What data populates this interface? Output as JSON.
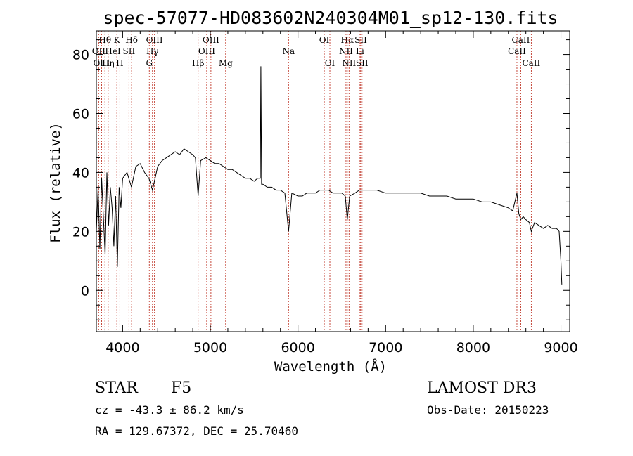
{
  "chart_data": {
    "type": "line",
    "title": "spec-57077-HD083602N240304M01_sp12-130.fits",
    "xlabel": "Wavelength (Å)",
    "ylabel": "Flux (relative)",
    "xlim": [
      3700,
      9100
    ],
    "ylim": [
      -14,
      88
    ],
    "xticks": [
      4000,
      5000,
      6000,
      7000,
      8000,
      9000
    ],
    "xtick_labels": [
      "4000",
      "5000",
      "6000",
      "7000",
      "8000",
      "9000"
    ],
    "yticks": [
      0,
      20,
      40,
      60,
      80
    ],
    "ytick_labels": [
      "0",
      "20",
      "40",
      "60",
      "80"
    ],
    "grid": false,
    "series": [
      {
        "name": "flux",
        "x": [
          3700,
          3720,
          3740,
          3760,
          3780,
          3800,
          3820,
          3840,
          3860,
          3880,
          3900,
          3920,
          3940,
          3960,
          3980,
          4000,
          4050,
          4100,
          4150,
          4200,
          4250,
          4300,
          4340,
          4400,
          4450,
          4500,
          4550,
          4600,
          4650,
          4700,
          4750,
          4800,
          4830,
          4861,
          4890,
          4950,
          5000,
          5050,
          5100,
          5150,
          5200,
          5250,
          5300,
          5350,
          5400,
          5450,
          5500,
          5540,
          5570,
          5577,
          5585,
          5600,
          5650,
          5700,
          5750,
          5800,
          5850,
          5893,
          5930,
          6000,
          6050,
          6100,
          6150,
          6200,
          6250,
          6300,
          6350,
          6400,
          6450,
          6500,
          6540,
          6563,
          6590,
          6650,
          6700,
          6750,
          6800,
          6900,
          7000,
          7100,
          7200,
          7300,
          7400,
          7500,
          7600,
          7700,
          7800,
          7900,
          8000,
          8100,
          8200,
          8300,
          8400,
          8450,
          8498,
          8520,
          8542,
          8570,
          8600,
          8640,
          8662,
          8700,
          8750,
          8800,
          8850,
          8900,
          8950,
          8980,
          9000,
          9010
        ],
        "y": [
          20,
          35,
          14,
          38,
          25,
          12,
          40,
          22,
          35,
          28,
          15,
          32,
          8,
          35,
          28,
          38,
          40,
          35,
          42,
          43,
          40,
          38,
          34,
          42,
          44,
          45,
          46,
          47,
          46,
          48,
          47,
          46,
          45,
          32,
          44,
          45,
          44,
          43,
          43,
          42,
          41,
          41,
          40,
          39,
          38,
          38,
          37,
          38,
          38,
          76,
          36,
          36,
          35,
          35,
          34,
          34,
          33,
          20,
          33,
          32,
          32,
          33,
          33,
          33,
          34,
          34,
          34,
          33,
          33,
          33,
          32,
          24,
          32,
          33,
          34,
          34,
          34,
          34,
          33,
          33,
          33,
          33,
          33,
          32,
          32,
          32,
          31,
          31,
          31,
          30,
          30,
          29,
          28,
          27,
          33,
          26,
          24,
          25,
          24,
          23,
          20,
          23,
          22,
          21,
          22,
          21,
          21,
          20,
          10,
          2
        ]
      }
    ],
    "spectral_lines": [
      {
        "label": "Hθ",
        "x": 3798,
        "row": 1
      },
      {
        "label": "OII",
        "x": 3727,
        "row": 2
      },
      {
        "label": "OIII",
        "x": 3760,
        "row": 3
      },
      {
        "label": "Hη",
        "x": 3835,
        "row": 3
      },
      {
        "label": "HeI",
        "x": 3889,
        "row": 2
      },
      {
        "label": "K",
        "x": 3934,
        "row": 1
      },
      {
        "label": "H",
        "x": 3968,
        "row": 3
      },
      {
        "label": "SII",
        "x": 4072,
        "row": 2
      },
      {
        "label": "Hδ",
        "x": 4102,
        "row": 1
      },
      {
        "label": "OIII",
        "x": 4363,
        "row": 1
      },
      {
        "label": "Hγ",
        "x": 4340,
        "row": 2
      },
      {
        "label": "G",
        "x": 4304,
        "row": 3
      },
      {
        "label": "Hβ",
        "x": 4861,
        "row": 3
      },
      {
        "label": "OIII",
        "x": 5007,
        "row": 1
      },
      {
        "label": "OIII",
        "x": 4959,
        "row": 2
      },
      {
        "label": "Mg",
        "x": 5175,
        "row": 3
      },
      {
        "label": "Na",
        "x": 5893,
        "row": 2
      },
      {
        "label": "OI",
        "x": 6300,
        "row": 1
      },
      {
        "label": "OI",
        "x": 6364,
        "row": 3
      },
      {
        "label": "Hα",
        "x": 6563,
        "row": 1
      },
      {
        "label": "NII",
        "x": 6548,
        "row": 2
      },
      {
        "label": "NII",
        "x": 6583,
        "row": 3
      },
      {
        "label": "SII",
        "x": 6717,
        "row": 1
      },
      {
        "label": "Li",
        "x": 6708,
        "row": 2
      },
      {
        "label": "SII",
        "x": 6731,
        "row": 3
      },
      {
        "label": "CaII",
        "x": 8542,
        "row": 1
      },
      {
        "label": "CaII",
        "x": 8498,
        "row": 2
      },
      {
        "label": "CaII",
        "x": 8662,
        "row": 3
      }
    ]
  },
  "footer": {
    "class": "STAR",
    "subclass": "F5",
    "survey": "LAMOST DR3",
    "cz": "cz = -43.3 ± 86.2 km/s",
    "obs_date": "Obs-Date: 20150223",
    "coords": "RA = 129.67372, DEC =  25.70460"
  },
  "colors": {
    "axis": "#000000",
    "flux": "#000000",
    "lines": "#c0392b"
  }
}
